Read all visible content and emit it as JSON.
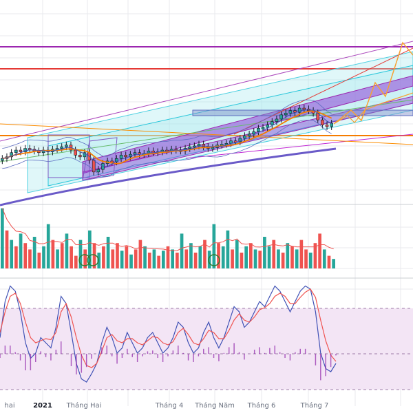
{
  "window": {
    "background": "#ffffff"
  },
  "colors": {
    "up": "#26a69a",
    "down": "#ef5350",
    "candle_body": "#131722",
    "channel_fill": "#a5e8ef",
    "channel_line": "#1e88e5",
    "purple_band": "#9c27b0",
    "purple_fill": "#8e44d6",
    "ma_orange": "#f57c00",
    "ma_blue": "#3f51b5",
    "red_line": "#e53935",
    "osc_fill": "#f3e5f5",
    "osc_line_red": "#ef5350",
    "osc_line_blue": "#3f51b5",
    "projection": "#f7a233"
  },
  "x_axis": {
    "labels": [
      {
        "text": "hai",
        "kind": "month"
      },
      {
        "text": "2021",
        "kind": "year"
      },
      {
        "text": "Tháng Hai",
        "kind": "month"
      },
      {
        "text": "Tháng 4",
        "kind": "month"
      },
      {
        "text": "Tháng Năm",
        "kind": "month"
      },
      {
        "text": "Tháng 6",
        "kind": "month"
      },
      {
        "text": "Tháng 7",
        "kind": "month"
      }
    ]
  },
  "chart_data": [
    {
      "type": "line",
      "panel": "price",
      "x_labels": [
        "hai",
        "2021",
        "Tháng Hai",
        "Tháng 4",
        "Tháng Năm",
        "Tháng 6",
        "Tháng 7"
      ],
      "close_series_relative": [
        0.26,
        0.28,
        0.33,
        0.36,
        0.34,
        0.38,
        0.37,
        0.35,
        0.33,
        0.36,
        0.34,
        0.37,
        0.38,
        0.4,
        0.42,
        0.36,
        0.3,
        0.28,
        0.33,
        0.24,
        0.1,
        0.13,
        0.2,
        0.23,
        0.22,
        0.26,
        0.3,
        0.28,
        0.31,
        0.33,
        0.31,
        0.32,
        0.35,
        0.33,
        0.34,
        0.36,
        0.35,
        0.37,
        0.36,
        0.35,
        0.38,
        0.4,
        0.41,
        0.43,
        0.4,
        0.38,
        0.39,
        0.42,
        0.43,
        0.44,
        0.47,
        0.46,
        0.5,
        0.53,
        0.55,
        0.58,
        0.62,
        0.63,
        0.66,
        0.7,
        0.73,
        0.78,
        0.8,
        0.83,
        0.81,
        0.86,
        0.85,
        0.83,
        0.8,
        0.72,
        0.66,
        0.64,
        0.68
      ]
    },
    {
      "type": "bar",
      "panel": "volume",
      "values": [
        0.95,
        0.6,
        0.45,
        0.35,
        0.55,
        0.4,
        0.3,
        0.5,
        0.25,
        0.35,
        0.7,
        0.45,
        0.3,
        0.4,
        0.55,
        0.35,
        0.2,
        0.45,
        0.3,
        0.6,
        0.4,
        0.25,
        0.35,
        0.5,
        0.3,
        0.4,
        0.28,
        0.35,
        0.22,
        0.3,
        0.45,
        0.35,
        0.25,
        0.3,
        0.2,
        0.28,
        0.35,
        0.3,
        0.25,
        0.55,
        0.3,
        0.4,
        0.25,
        0.35,
        0.45,
        0.28,
        0.7,
        0.4,
        0.35,
        0.6,
        0.3,
        0.45,
        0.25,
        0.35,
        0.4,
        0.3,
        0.28,
        0.5,
        0.35,
        0.45,
        0.3,
        0.25,
        0.4,
        0.35,
        0.3,
        0.45,
        0.3,
        0.25,
        0.4,
        0.55,
        0.3,
        0.2,
        0.15
      ],
      "up": [
        1,
        0,
        1,
        0,
        1,
        0,
        0,
        1,
        0,
        1,
        1,
        0,
        1,
        0,
        1,
        0,
        0,
        1,
        0,
        1,
        0,
        1,
        0,
        1,
        0,
        0,
        1,
        0,
        1,
        0,
        0,
        1,
        0,
        1,
        0,
        1,
        0,
        1,
        0,
        1,
        0,
        1,
        0,
        1,
        0,
        1,
        1,
        0,
        1,
        1,
        0,
        1,
        0,
        1,
        0,
        1,
        0,
        1,
        1,
        0,
        1,
        0,
        1,
        0,
        1,
        0,
        0,
        1,
        0,
        0,
        1,
        0,
        1
      ]
    },
    {
      "type": "line",
      "panel": "oscillator",
      "series": [
        {
          "color_key": "osc_line_blue",
          "values": [
            0.45,
            0.8,
            0.95,
            0.9,
            0.7,
            0.4,
            0.25,
            0.3,
            0.45,
            0.4,
            0.35,
            0.55,
            0.85,
            0.78,
            0.5,
            0.2,
            0.05,
            0.02,
            0.1,
            0.2,
            0.4,
            0.55,
            0.45,
            0.3,
            0.35,
            0.5,
            0.4,
            0.3,
            0.35,
            0.45,
            0.5,
            0.4,
            0.3,
            0.35,
            0.45,
            0.6,
            0.55,
            0.4,
            0.3,
            0.35,
            0.5,
            0.6,
            0.45,
            0.35,
            0.45,
            0.6,
            0.75,
            0.7,
            0.55,
            0.6,
            0.7,
            0.8,
            0.75,
            0.85,
            0.95,
            0.9,
            0.8,
            0.7,
            0.8,
            0.9,
            0.95,
            0.92,
            0.7,
            0.3,
            0.15,
            0.12,
            0.2
          ]
        },
        {
          "color_key": "osc_line_red",
          "values": [
            0.5,
            0.7,
            0.85,
            0.88,
            0.78,
            0.6,
            0.45,
            0.4,
            0.42,
            0.44,
            0.43,
            0.5,
            0.7,
            0.78,
            0.65,
            0.45,
            0.28,
            0.18,
            0.16,
            0.2,
            0.32,
            0.45,
            0.48,
            0.42,
            0.4,
            0.44,
            0.44,
            0.4,
            0.38,
            0.42,
            0.46,
            0.45,
            0.4,
            0.38,
            0.41,
            0.5,
            0.54,
            0.48,
            0.4,
            0.38,
            0.44,
            0.52,
            0.5,
            0.44,
            0.44,
            0.52,
            0.62,
            0.68,
            0.62,
            0.6,
            0.65,
            0.72,
            0.74,
            0.78,
            0.85,
            0.88,
            0.85,
            0.78,
            0.78,
            0.84,
            0.89,
            0.92,
            0.84,
            0.62,
            0.42,
            0.28,
            0.22
          ]
        }
      ]
    }
  ]
}
